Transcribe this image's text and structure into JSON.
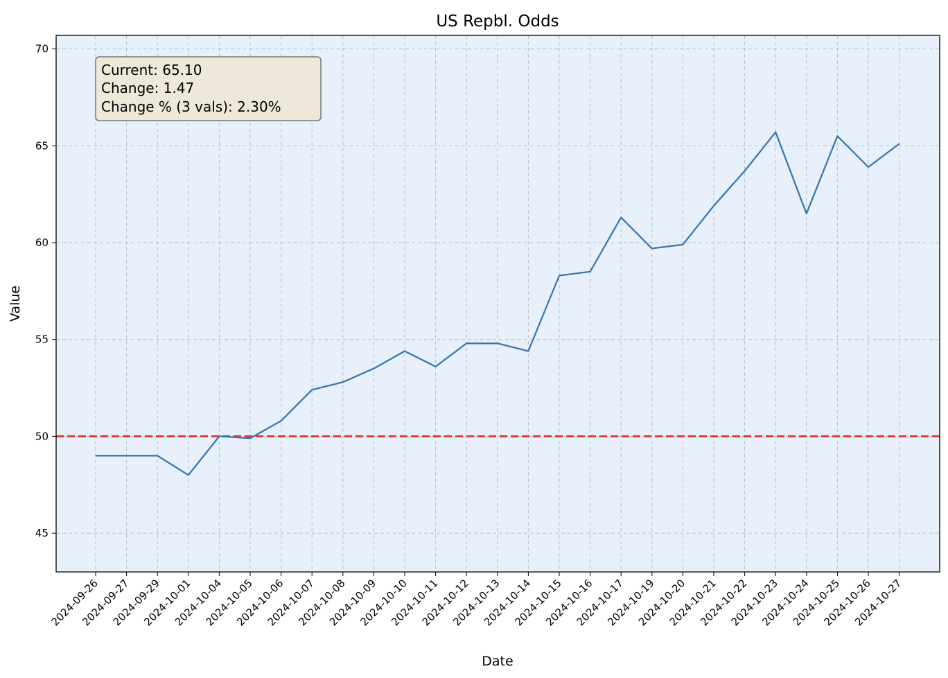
{
  "chart_data": {
    "type": "line",
    "title": "US Repbl. Odds",
    "xlabel": "Date",
    "ylabel": "Value",
    "ylim": [
      43,
      70.7
    ],
    "yticks": [
      45,
      50,
      55,
      60,
      65,
      70
    ],
    "grid": true,
    "x": [
      "2024-09-26",
      "2024-09-27",
      "2024-09-29",
      "2024-10-01",
      "2024-10-04",
      "2024-10-05",
      "2024-10-06",
      "2024-10-07",
      "2024-10-08",
      "2024-10-09",
      "2024-10-10",
      "2024-10-11",
      "2024-10-12",
      "2024-10-13",
      "2024-10-14",
      "2024-10-15",
      "2024-10-16",
      "2024-10-17",
      "2024-10-19",
      "2024-10-20",
      "2024-10-21",
      "2024-10-22",
      "2024-10-23",
      "2024-10-24",
      "2024-10-25",
      "2024-10-26",
      "2024-10-27"
    ],
    "series": [
      {
        "values": [
          49.0,
          49.0,
          49.0,
          48.0,
          50.0,
          49.9,
          50.8,
          52.4,
          52.8,
          53.5,
          54.4,
          53.6,
          54.8,
          54.8,
          54.4,
          58.3,
          58.5,
          61.3,
          59.7,
          59.9,
          61.9,
          63.7,
          65.7,
          61.5,
          65.5,
          63.9,
          65.1
        ],
        "color": "#3a76af"
      }
    ],
    "reference_line": {
      "y": 50,
      "color": "#e03a2f",
      "style": "dashed"
    },
    "annotation_lines": [
      "Current: 65.10",
      "Change: 1.47",
      "Change % (3 vals): 2.30%"
    ],
    "colors": {
      "plot_bg": "#e8f1fb",
      "grid": "#b4bfcc",
      "box_bg": "#ede8d9"
    }
  }
}
